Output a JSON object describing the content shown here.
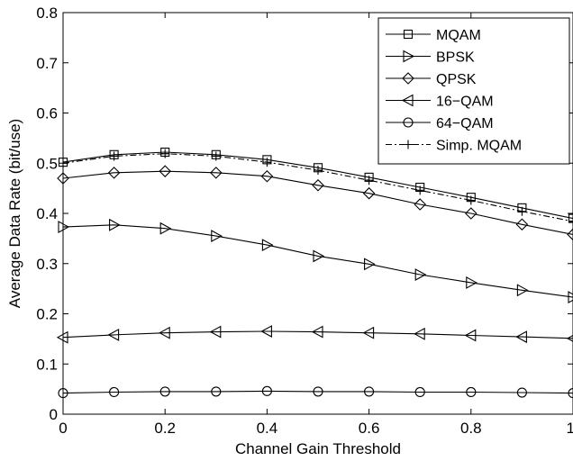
{
  "chart_data": {
    "type": "line",
    "xlabel": "Channel Gain Threshold",
    "ylabel": "Average Data Rate (bit/use)",
    "xlim": [
      0,
      1
    ],
    "ylim": [
      0,
      0.8
    ],
    "xticks": [
      0,
      0.2,
      0.4,
      0.6,
      0.8,
      1
    ],
    "xtick_labels": [
      "0",
      "0.2",
      "0.4",
      "0.6",
      "0.8",
      "1"
    ],
    "yticks": [
      0,
      0.1,
      0.2,
      0.3,
      0.4,
      0.5,
      0.6,
      0.7,
      0.8
    ],
    "ytick_labels": [
      "0",
      "0.1",
      "0.2",
      "0.3",
      "0.4",
      "0.5",
      "0.6",
      "0.7",
      "0.8"
    ],
    "grid": false,
    "legend_position": "top-right",
    "x": [
      0,
      0.1,
      0.2,
      0.3,
      0.4,
      0.5,
      0.6,
      0.7,
      0.8,
      0.9,
      1.0
    ],
    "series": [
      {
        "name": "MQAM",
        "marker": "square",
        "dash": "solid",
        "values": [
          0.502,
          0.517,
          0.522,
          0.517,
          0.507,
          0.491,
          0.472,
          0.452,
          0.432,
          0.411,
          0.39
        ]
      },
      {
        "name": "BPSK",
        "marker": "triangle-right",
        "dash": "solid",
        "values": [
          0.373,
          0.377,
          0.37,
          0.355,
          0.337,
          0.315,
          0.299,
          0.278,
          0.262,
          0.247,
          0.233
        ]
      },
      {
        "name": "QPSK",
        "marker": "diamond",
        "dash": "solid",
        "values": [
          0.47,
          0.481,
          0.484,
          0.481,
          0.474,
          0.456,
          0.44,
          0.418,
          0.4,
          0.378,
          0.358
        ]
      },
      {
        "name": "16−QAM",
        "marker": "triangle-left",
        "dash": "solid",
        "values": [
          0.153,
          0.158,
          0.162,
          0.164,
          0.165,
          0.164,
          0.162,
          0.16,
          0.157,
          0.154,
          0.151
        ]
      },
      {
        "name": "64−QAM",
        "marker": "circle",
        "dash": "solid",
        "values": [
          0.042,
          0.044,
          0.045,
          0.045,
          0.046,
          0.045,
          0.045,
          0.044,
          0.044,
          0.043,
          0.042
        ]
      },
      {
        "name": "Simp. MQAM",
        "marker": "plus",
        "dash": "dashdot",
        "values": [
          0.5,
          0.514,
          0.519,
          0.514,
          0.502,
          0.486,
          0.466,
          0.446,
          0.426,
          0.404,
          0.384
        ]
      }
    ]
  }
}
